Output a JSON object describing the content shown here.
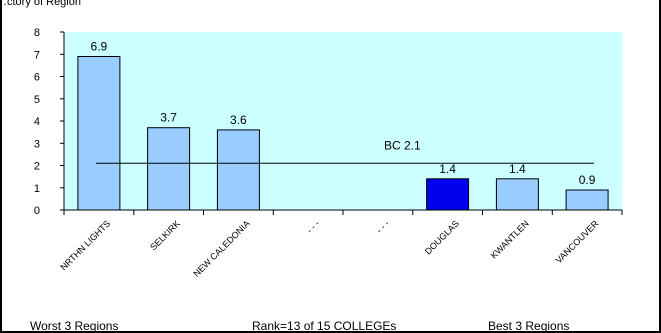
{
  "chart_data": {
    "type": "bar",
    "categories": [
      "NRTHN LIGHTS",
      "SELKIRK",
      "NEW CALEDONIA",
      "- - -",
      "- - -",
      "DOUGLAS",
      "KWANTLEN",
      "VANCOUVER"
    ],
    "values": [
      6.9,
      3.7,
      3.6,
      null,
      null,
      1.4,
      1.4,
      0.9
    ],
    "data_labels": [
      "6.9",
      "3.7",
      "3.6",
      "",
      "",
      "1.4",
      "1.4",
      "0.9"
    ],
    "highlight_category": "DOUGLAS",
    "ylim": [
      0,
      8
    ],
    "yticks": [
      0,
      1,
      2,
      3,
      4,
      5,
      6,
      7,
      8
    ],
    "reference_line": {
      "label": "BC 2.1",
      "value": 2.1
    },
    "colors": {
      "plot_background": "#ccffff",
      "bar_fill": "#99ccff",
      "highlight_fill": "#0000ee",
      "bar_stroke": "#000000"
    },
    "footer": {
      "left": "Worst 3 Regions",
      "center": "Rank=13 of 15 COLLEGEs",
      "right": "Best 3 Regions"
    },
    "top_text": "…ctory of Region"
  }
}
